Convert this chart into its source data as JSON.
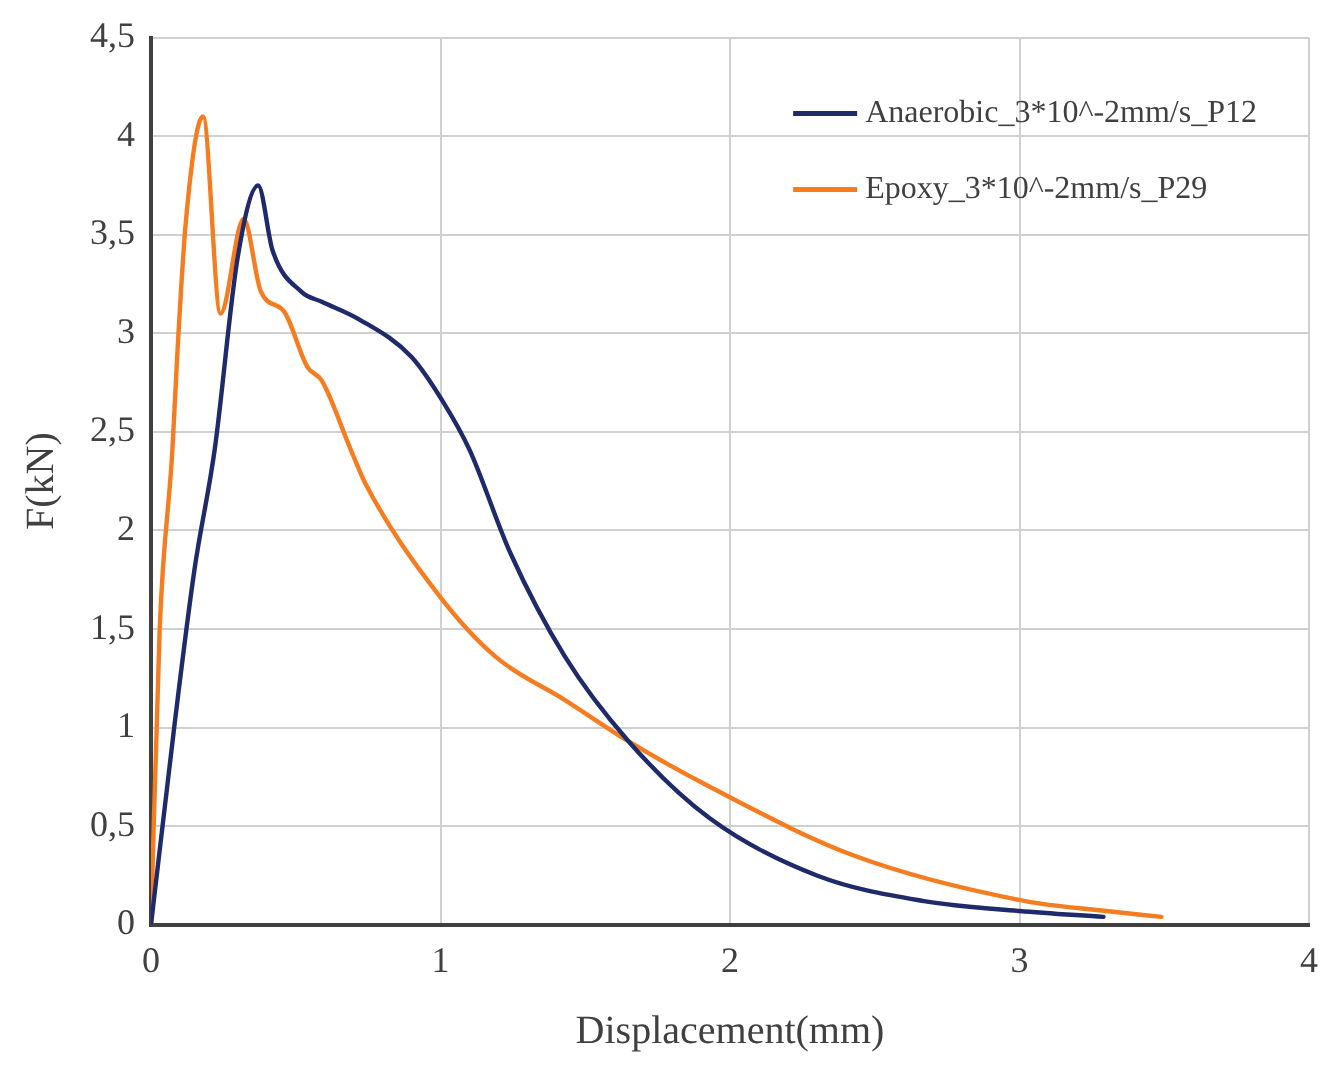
{
  "chart_data": {
    "type": "line",
    "xlabel": "Displacement(mm)",
    "ylabel": "F(kN)",
    "xlim": [
      0,
      4
    ],
    "xticks": [
      0,
      1,
      2,
      3,
      4
    ],
    "ylim": [
      0,
      4.5
    ],
    "yticks": [
      0,
      {
        "value": 0.5,
        "label": "0,5"
      },
      1,
      {
        "value": 1.5,
        "label": "1,5"
      },
      2,
      {
        "value": 2.5,
        "label": "2,5"
      },
      3,
      {
        "value": 3.5,
        "label": "3,5"
      },
      4,
      {
        "value": 4.5,
        "label": "4,5"
      }
    ],
    "grid": true,
    "legend": "top right",
    "marker": "none",
    "line_style": "solid",
    "series": [
      {
        "name": "Anaerobic_3*10^-2mm/s_P12",
        "color": "#1f2a6b",
        "x": [
          0,
          0.08,
          0.15,
          0.22,
          0.3,
          0.37,
          0.42,
          0.52,
          0.59,
          0.72,
          0.9,
          1.01,
          1.1,
          1.24,
          1.43,
          1.65,
          1.93,
          2.3,
          2.67,
          3.0,
          3.29
        ],
        "values": [
          0,
          1.0,
          1.8,
          2.41,
          3.39,
          3.75,
          3.42,
          3.21,
          3.16,
          3.07,
          2.88,
          2.65,
          2.41,
          1.89,
          1.36,
          0.93,
          0.54,
          0.25,
          0.12,
          0.07,
          0.04
        ]
      },
      {
        "name": "Epoxy_3*10^-2mm/s_P29",
        "color": "#f57c1f",
        "x": [
          0,
          0.03,
          0.074,
          0.09,
          0.12,
          0.18,
          0.24,
          0.32,
          0.38,
          0.46,
          0.54,
          0.59,
          0.69,
          0.74,
          0.99,
          1.19,
          1.43,
          1.65,
          1.93,
          2.43,
          3.02,
          3.3,
          3.49
        ],
        "values": [
          0,
          1.5,
          2.41,
          2.87,
          3.56,
          4.1,
          3.1,
          3.58,
          3.21,
          3.11,
          2.83,
          2.76,
          2.41,
          2.24,
          1.68,
          1.36,
          1.14,
          0.93,
          0.7,
          0.35,
          0.12,
          0.07,
          0.04
        ]
      }
    ]
  }
}
